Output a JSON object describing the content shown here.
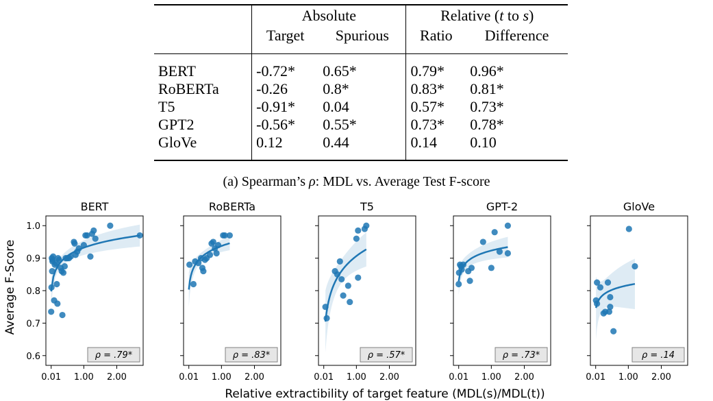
{
  "table": {
    "headers": {
      "group_absolute": "Absolute",
      "group_relative_prefix": "Relative (",
      "group_relative_t": "t",
      "group_relative_mid": " to ",
      "group_relative_s": "s",
      "group_relative_suffix": ")",
      "target": "Target",
      "spurious": "Spurious",
      "ratio": "Ratio",
      "difference": "Difference"
    },
    "rows": [
      {
        "model": "BERT",
        "target": "-0.72*",
        "spurious": "0.65*",
        "ratio": "0.79*",
        "difference": "0.96*"
      },
      {
        "model": "RoBERTa",
        "target": "-0.26",
        "spurious": "0.8*",
        "ratio": "0.83*",
        "difference": "0.81*"
      },
      {
        "model": "T5",
        "target": "-0.91*",
        "spurious": "0.04",
        "ratio": "0.57*",
        "difference": "0.73*"
      },
      {
        "model": "GPT2",
        "target": "-0.56*",
        "spurious": "0.55*",
        "ratio": "0.73*",
        "difference": "0.78*"
      },
      {
        "model": "GloVe",
        "target": "0.12",
        "spurious": "0.44",
        "ratio": "0.14",
        "difference": "0.10"
      }
    ]
  },
  "caption": {
    "prefix": "(a) Spearman’s ",
    "rho": "ρ",
    "suffix": ": MDL vs. Average Test F-score"
  },
  "chart_data": {
    "type": "scatter",
    "ylabel": "Average F-Score",
    "xlabel": "Relative extractibility of target feature (MDL(s)/MDL(t))",
    "xlim": [
      -0.15,
      2.8
    ],
    "ylim": [
      0.57,
      1.03
    ],
    "xticks": [
      0.01,
      1.0,
      2.0
    ],
    "xtick_labels": [
      "0.01",
      "1.00",
      "2.00"
    ],
    "yticks": [
      0.6,
      0.7,
      0.8,
      0.9,
      1.0
    ],
    "ytick_labels": [
      "0.6",
      "0.7",
      "0.8",
      "0.9",
      "1.0"
    ],
    "marker_color": "#1f77b4",
    "panels": [
      {
        "title": "BERT",
        "annotation": "ρ = .79*",
        "points": [
          [
            0.01,
            0.735
          ],
          [
            0.02,
            0.81
          ],
          [
            0.03,
            0.9
          ],
          [
            0.04,
            0.86
          ],
          [
            0.05,
            0.89
          ],
          [
            0.05,
            0.895
          ],
          [
            0.07,
            0.905
          ],
          [
            0.1,
            0.77
          ],
          [
            0.12,
            0.88
          ],
          [
            0.15,
            0.885
          ],
          [
            0.18,
            0.82
          ],
          [
            0.2,
            0.76
          ],
          [
            0.22,
            0.9
          ],
          [
            0.25,
            0.895
          ],
          [
            0.3,
            0.87
          ],
          [
            0.33,
            0.86
          ],
          [
            0.35,
            0.725
          ],
          [
            0.38,
            0.855
          ],
          [
            0.42,
            0.875
          ],
          [
            0.45,
            0.9
          ],
          [
            0.5,
            0.9
          ],
          [
            0.55,
            0.9
          ],
          [
            0.6,
            0.905
          ],
          [
            0.7,
            0.95
          ],
          [
            0.72,
            0.945
          ],
          [
            0.75,
            0.91
          ],
          [
            0.8,
            0.92
          ],
          [
            0.85,
            0.93
          ],
          [
            1.0,
            0.94
          ],
          [
            1.05,
            0.97
          ],
          [
            1.1,
            0.97
          ],
          [
            1.2,
            0.905
          ],
          [
            1.25,
            0.975
          ],
          [
            1.3,
            0.985
          ],
          [
            1.35,
            0.96
          ],
          [
            1.8,
            1.0
          ],
          [
            2.7,
            0.97
          ]
        ],
        "fit_range": [
          0.01,
          2.7
        ]
      },
      {
        "title": "RoBERTa",
        "annotation": "ρ = .83*",
        "points": [
          [
            0.03,
            0.88
          ],
          [
            0.15,
            0.82
          ],
          [
            0.2,
            0.89
          ],
          [
            0.3,
            0.885
          ],
          [
            0.38,
            0.9
          ],
          [
            0.42,
            0.87
          ],
          [
            0.45,
            0.86
          ],
          [
            0.5,
            0.895
          ],
          [
            0.55,
            0.9
          ],
          [
            0.65,
            0.91
          ],
          [
            0.7,
            0.945
          ],
          [
            0.75,
            0.95
          ],
          [
            0.8,
            0.93
          ],
          [
            0.85,
            0.915
          ],
          [
            0.9,
            0.94
          ],
          [
            1.05,
            0.97
          ],
          [
            1.1,
            0.97
          ],
          [
            1.25,
            0.97
          ]
        ],
        "fit_range": [
          0.01,
          1.25
        ]
      },
      {
        "title": "T5",
        "annotation": "ρ = .57*",
        "points": [
          [
            0.06,
            0.75
          ],
          [
            0.1,
            0.715
          ],
          [
            0.35,
            0.86
          ],
          [
            0.42,
            0.85
          ],
          [
            0.5,
            0.89
          ],
          [
            0.55,
            0.835
          ],
          [
            0.6,
            0.785
          ],
          [
            0.75,
            0.815
          ],
          [
            0.8,
            0.765
          ],
          [
            1.0,
            0.96
          ],
          [
            1.05,
            0.985
          ],
          [
            1.05,
            0.84
          ],
          [
            1.25,
            0.99
          ],
          [
            1.3,
            1.0
          ]
        ],
        "fit_range": [
          0.06,
          1.3
        ]
      },
      {
        "title": "GPT-2",
        "annotation": "ρ = .73*",
        "points": [
          [
            0.01,
            0.82
          ],
          [
            0.02,
            0.855
          ],
          [
            0.05,
            0.88
          ],
          [
            0.08,
            0.875
          ],
          [
            0.1,
            0.865
          ],
          [
            0.15,
            0.88
          ],
          [
            0.3,
            0.86
          ],
          [
            0.35,
            0.83
          ],
          [
            0.4,
            0.87
          ],
          [
            0.75,
            0.95
          ],
          [
            1.0,
            0.87
          ],
          [
            1.1,
            0.98
          ],
          [
            1.25,
            0.92
          ],
          [
            1.5,
            0.915
          ],
          [
            1.5,
            1.0
          ]
        ],
        "fit_range": [
          0.01,
          1.5
        ]
      },
      {
        "title": "GloVe",
        "annotation": "ρ = .14",
        "points": [
          [
            0.02,
            0.77
          ],
          [
            0.05,
            0.825
          ],
          [
            0.05,
            0.76
          ],
          [
            0.15,
            0.81
          ],
          [
            0.25,
            0.73
          ],
          [
            0.3,
            0.735
          ],
          [
            0.38,
            0.825
          ],
          [
            0.42,
            0.735
          ],
          [
            0.45,
            0.78
          ],
          [
            0.45,
            0.75
          ],
          [
            0.55,
            0.675
          ],
          [
            1.02,
            0.99
          ],
          [
            1.2,
            0.875
          ]
        ],
        "fit_range": [
          0.02,
          1.2
        ]
      }
    ]
  }
}
